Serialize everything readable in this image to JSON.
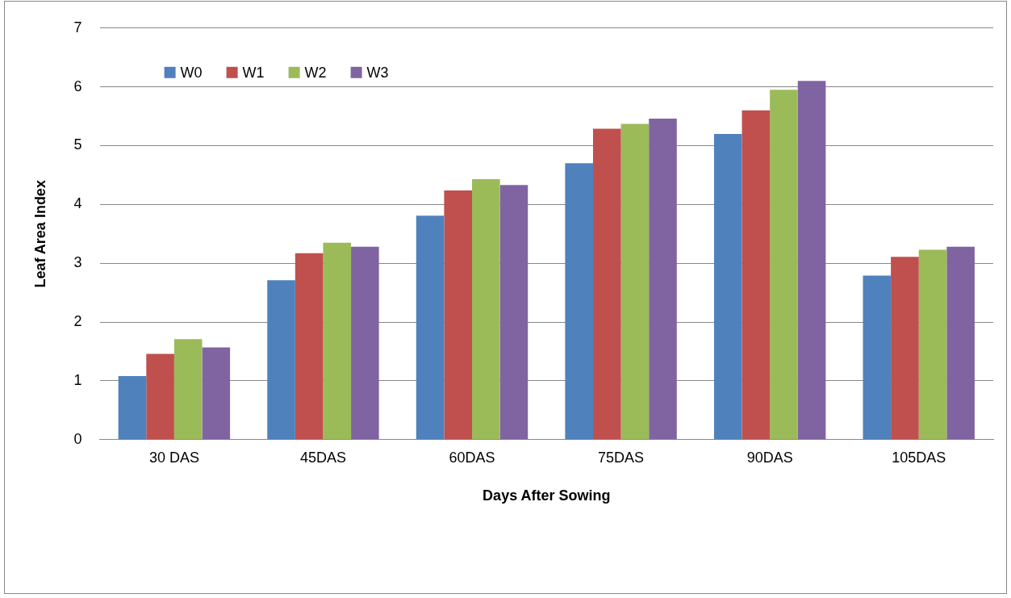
{
  "chart_data": {
    "type": "bar",
    "xlabel": "Days After Sowing",
    "ylabel": "Leaf Area Index",
    "categories": [
      "30 DAS",
      "45DAS",
      "60DAS",
      "75DAS",
      "90DAS",
      "105DAS"
    ],
    "series": [
      {
        "name": "W0",
        "color": "#4f81bd",
        "values": [
          1.08,
          2.71,
          3.81,
          4.7,
          5.2,
          2.79
        ]
      },
      {
        "name": "W1",
        "color": "#c0504d",
        "values": [
          1.46,
          3.17,
          4.24,
          5.29,
          5.6,
          3.11
        ]
      },
      {
        "name": "W2",
        "color": "#9bbb59",
        "values": [
          1.71,
          3.35,
          4.43,
          5.37,
          5.95,
          3.23
        ]
      },
      {
        "name": "W3",
        "color": "#8064a2",
        "values": [
          1.57,
          3.28,
          4.33,
          5.46,
          6.1,
          3.28
        ]
      }
    ],
    "ylim": [
      0,
      7
    ],
    "yticks": [
      0,
      1,
      2,
      3,
      4,
      5,
      6,
      7
    ],
    "grid": "y",
    "legend": "top left"
  }
}
